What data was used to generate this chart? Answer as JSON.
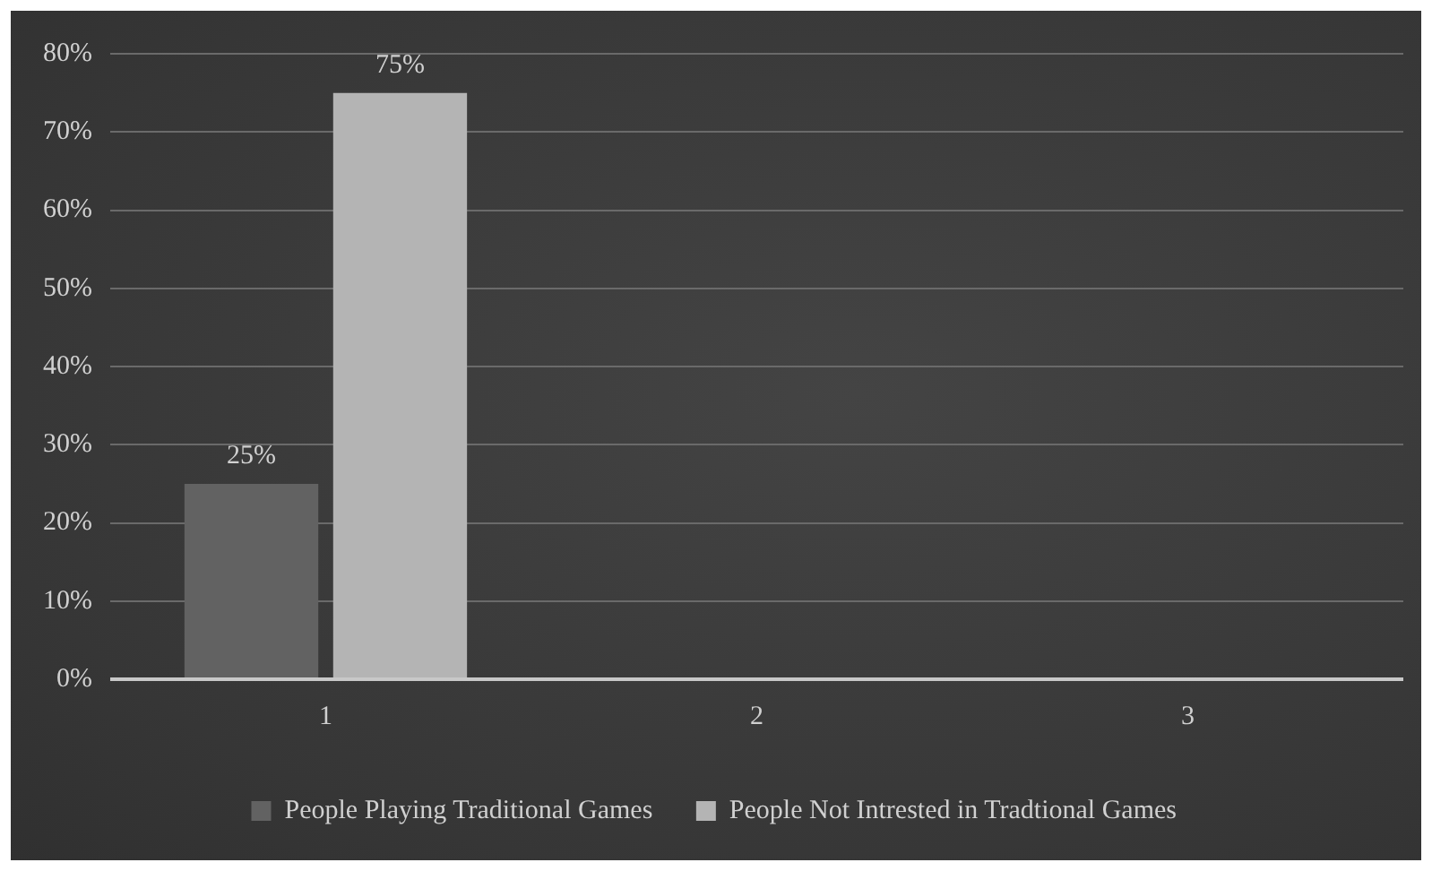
{
  "chart_data": {
    "type": "bar",
    "categories": [
      "1",
      "2",
      "3"
    ],
    "series": [
      {
        "name": "People Playing Traditional Games",
        "color": "#626262",
        "values": [
          25,
          null,
          null
        ],
        "value_labels": [
          "25%",
          null,
          null
        ]
      },
      {
        "name": "People Not Intrested in Tradtional Games",
        "color": "#b4b4b4",
        "values": [
          75,
          null,
          null
        ],
        "value_labels": [
          "75%",
          null,
          null
        ]
      }
    ],
    "ylim": [
      0,
      80
    ],
    "yticks": [
      {
        "value": 0,
        "label": "0%"
      },
      {
        "value": 10,
        "label": "10%"
      },
      {
        "value": 20,
        "label": "20%"
      },
      {
        "value": 30,
        "label": "30%"
      },
      {
        "value": 40,
        "label": "40%"
      },
      {
        "value": 50,
        "label": "50%"
      },
      {
        "value": 60,
        "label": "60%"
      },
      {
        "value": 70,
        "label": "70%"
      },
      {
        "value": 80,
        "label": "80%"
      }
    ],
    "grid": "y",
    "legend": "bottom"
  }
}
